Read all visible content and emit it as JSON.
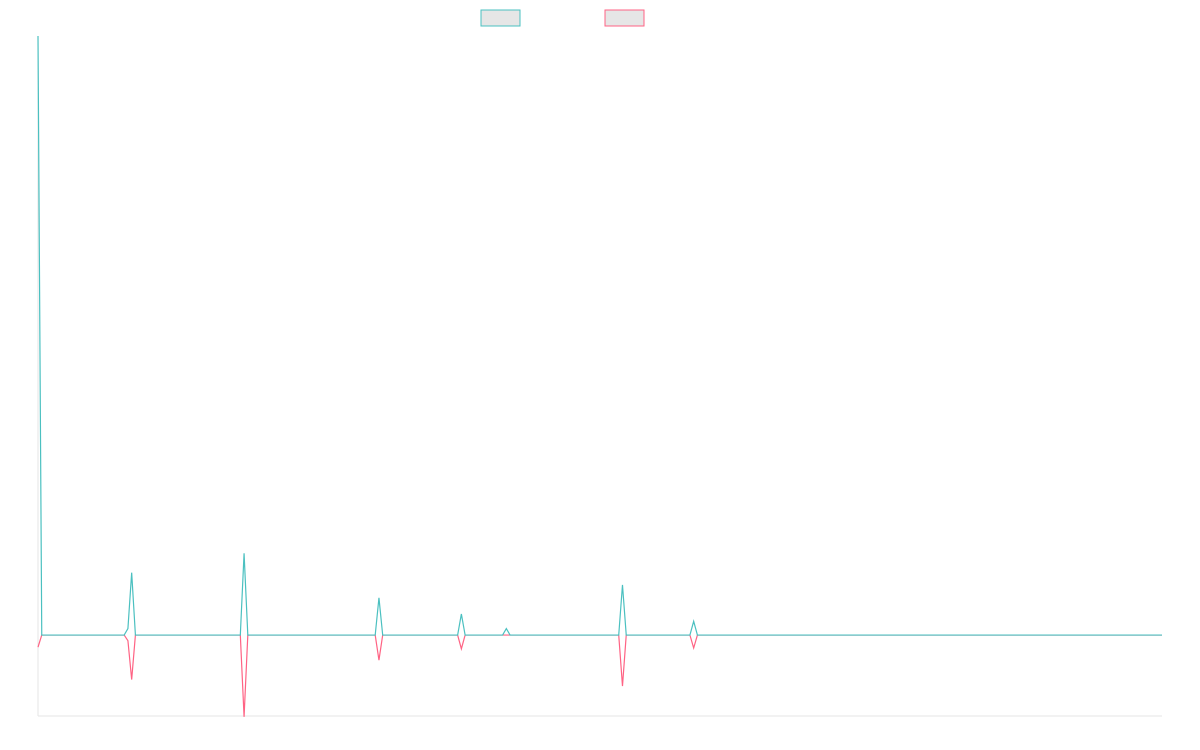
{
  "chart_data": {
    "type": "line",
    "title": "",
    "xlabel": "",
    "ylabel": "",
    "grid": false,
    "legend_position": "top-center",
    "x_count": 301,
    "ylim": [
      -100,
      740
    ],
    "baseline": 0,
    "colors": {
      "teal": "#4bc0c0",
      "pink": "#ff6384",
      "legend_fill": "#e6e6e6",
      "axis": "#e6e6e6"
    },
    "series": [
      {
        "name": "",
        "color": "#4bc0c0",
        "spikes": [
          {
            "x": 0,
            "y": 740
          },
          {
            "x": 24,
            "y": 8
          },
          {
            "x": 25,
            "y": 77
          },
          {
            "x": 55,
            "y": 101
          },
          {
            "x": 91,
            "y": 46
          },
          {
            "x": 113,
            "y": 26
          },
          {
            "x": 125,
            "y": 8
          },
          {
            "x": 156,
            "y": 62
          },
          {
            "x": 175,
            "y": 17
          }
        ]
      },
      {
        "name": "",
        "color": "#ff6384",
        "spikes": [
          {
            "x": 0,
            "y": -15
          },
          {
            "x": 24,
            "y": -7
          },
          {
            "x": 25,
            "y": -55
          },
          {
            "x": 55,
            "y": -101
          },
          {
            "x": 91,
            "y": -31
          },
          {
            "x": 113,
            "y": -17
          },
          {
            "x": 156,
            "y": -63
          },
          {
            "x": 175,
            "y": -16
          }
        ]
      }
    ]
  }
}
